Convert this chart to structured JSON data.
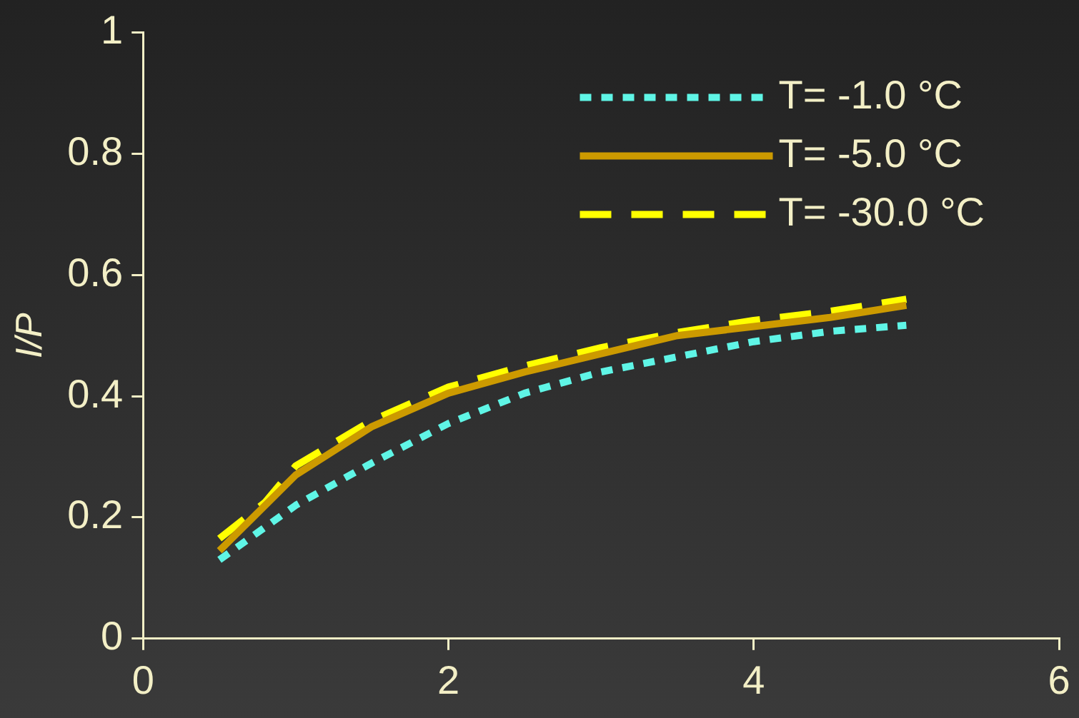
{
  "chart_data": {
    "type": "line",
    "ylabel": "I/P",
    "xlim": [
      0,
      6
    ],
    "xticks": [
      0,
      2,
      4,
      6
    ],
    "ylim": [
      0,
      1
    ],
    "yticks": [
      0,
      0.2,
      0.4,
      0.6,
      0.8,
      1
    ],
    "grid": false,
    "legend": "top right",
    "marker": "none",
    "series": [
      {
        "name": "T= -1.0 °C",
        "color": "#5ff5e6",
        "line_style": "dotted",
        "x": [
          0.5,
          1,
          1.5,
          2,
          2.5,
          3,
          3.5,
          4,
          4.5,
          5
        ],
        "values": [
          0.13,
          0.22,
          0.29,
          0.355,
          0.405,
          0.44,
          0.465,
          0.49,
          0.507,
          0.517
        ]
      },
      {
        "name": "T= -5.0 °C",
        "color": "#cc9a00",
        "line_style": "solid",
        "x": [
          0.5,
          1,
          1.5,
          2,
          2.5,
          3,
          3.5,
          4,
          4.5,
          5
        ],
        "values": [
          0.145,
          0.27,
          0.35,
          0.405,
          0.44,
          0.47,
          0.5,
          0.515,
          0.53,
          0.55
        ]
      },
      {
        "name": "T= -30.0 °C",
        "color": "#ffff00",
        "line_style": "dashed",
        "x": [
          0.5,
          0.8,
          1,
          1.5,
          2,
          2.5,
          3,
          3.5,
          4,
          4.5,
          5
        ],
        "values": [
          0.165,
          0.225,
          0.285,
          0.36,
          0.415,
          0.45,
          0.48,
          0.505,
          0.525,
          0.54,
          0.56
        ]
      }
    ]
  }
}
